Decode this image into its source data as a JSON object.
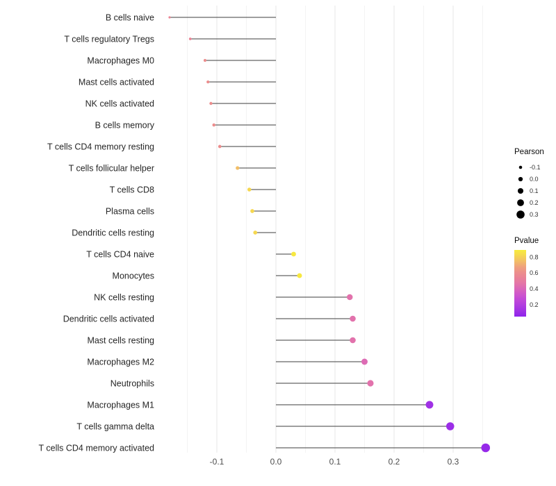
{
  "figure": {
    "background": "#ffffff"
  },
  "chart_data": {
    "type": "scatter",
    "variant": "lollipop",
    "title": "",
    "xlabel": "",
    "ylabel": "",
    "orientation": "horizontal",
    "grid": true,
    "legend_position": "right",
    "categories": [
      "B cells naive",
      "T cells regulatory  Tregs",
      "Macrophages M0",
      "Mast cells activated",
      "NK cells activated",
      "B cells memory",
      "T cells CD4 memory resting",
      "T cells follicular helper",
      "T cells CD8",
      "Plasma cells",
      "Dendritic cells resting",
      "T cells CD4 naive",
      "Monocytes",
      "NK cells resting",
      "Dendritic cells activated",
      "Mast cells resting",
      "Macrophages M2",
      "Neutrophils",
      "Macrophages M1",
      "T cells gamma delta",
      "T cells CD4 memory activated"
    ],
    "series": [
      {
        "name": "Pearson",
        "values": [
          -0.18,
          -0.145,
          -0.12,
          -0.115,
          -0.11,
          -0.105,
          -0.095,
          -0.065,
          -0.045,
          -0.04,
          -0.035,
          0.03,
          0.04,
          0.125,
          0.13,
          0.13,
          0.15,
          0.16,
          0.26,
          0.295,
          0.355
        ]
      },
      {
        "name": "Pvalue",
        "values": [
          0.55,
          0.55,
          0.6,
          0.6,
          0.6,
          0.6,
          0.6,
          0.75,
          0.82,
          0.82,
          0.82,
          0.87,
          0.87,
          0.45,
          0.45,
          0.45,
          0.42,
          0.45,
          0.12,
          0.1,
          0.08
        ]
      }
    ],
    "x_ticks": [
      -0.1,
      0.0,
      0.1,
      0.2,
      0.3
    ],
    "x_tick_labels": [
      "-0.1",
      "0.0",
      "0.1",
      "0.2",
      "0.3"
    ],
    "xlim": [
      -0.19,
      0.38
    ],
    "legends": {
      "size": {
        "title": "Pearson",
        "labels": [
          "-0.1",
          "0.0",
          "0.1",
          "0.2",
          "0.3"
        ],
        "values": [
          -0.1,
          0.0,
          0.1,
          0.2,
          0.3
        ],
        "dot_color": "#000000"
      },
      "color": {
        "title": "Pvalue",
        "labels": [
          "0.8",
          "0.6",
          "0.4",
          "0.2"
        ],
        "values": [
          0.8,
          0.6,
          0.4,
          0.2
        ],
        "domain_top": 0.89,
        "domain_bottom": 0.05
      }
    },
    "color_scale_stops": [
      {
        "p": 0.05,
        "color": "#8E24EB"
      },
      {
        "p": 0.15,
        "color": "#A736E3"
      },
      {
        "p": 0.3,
        "color": "#C94FD4"
      },
      {
        "p": 0.45,
        "color": "#E272AC"
      },
      {
        "p": 0.55,
        "color": "#EA8495"
      },
      {
        "p": 0.65,
        "color": "#EE9684"
      },
      {
        "p": 0.75,
        "color": "#F2BE66"
      },
      {
        "p": 0.88,
        "color": "#F7EC3D"
      }
    ],
    "style": {
      "stem_color": "#3c3c3c",
      "grid_major": "#e7e7e7",
      "grid_minor": "#f3f3f3",
      "label_color": "#262626",
      "tick_color": "#4d4d4d"
    }
  }
}
